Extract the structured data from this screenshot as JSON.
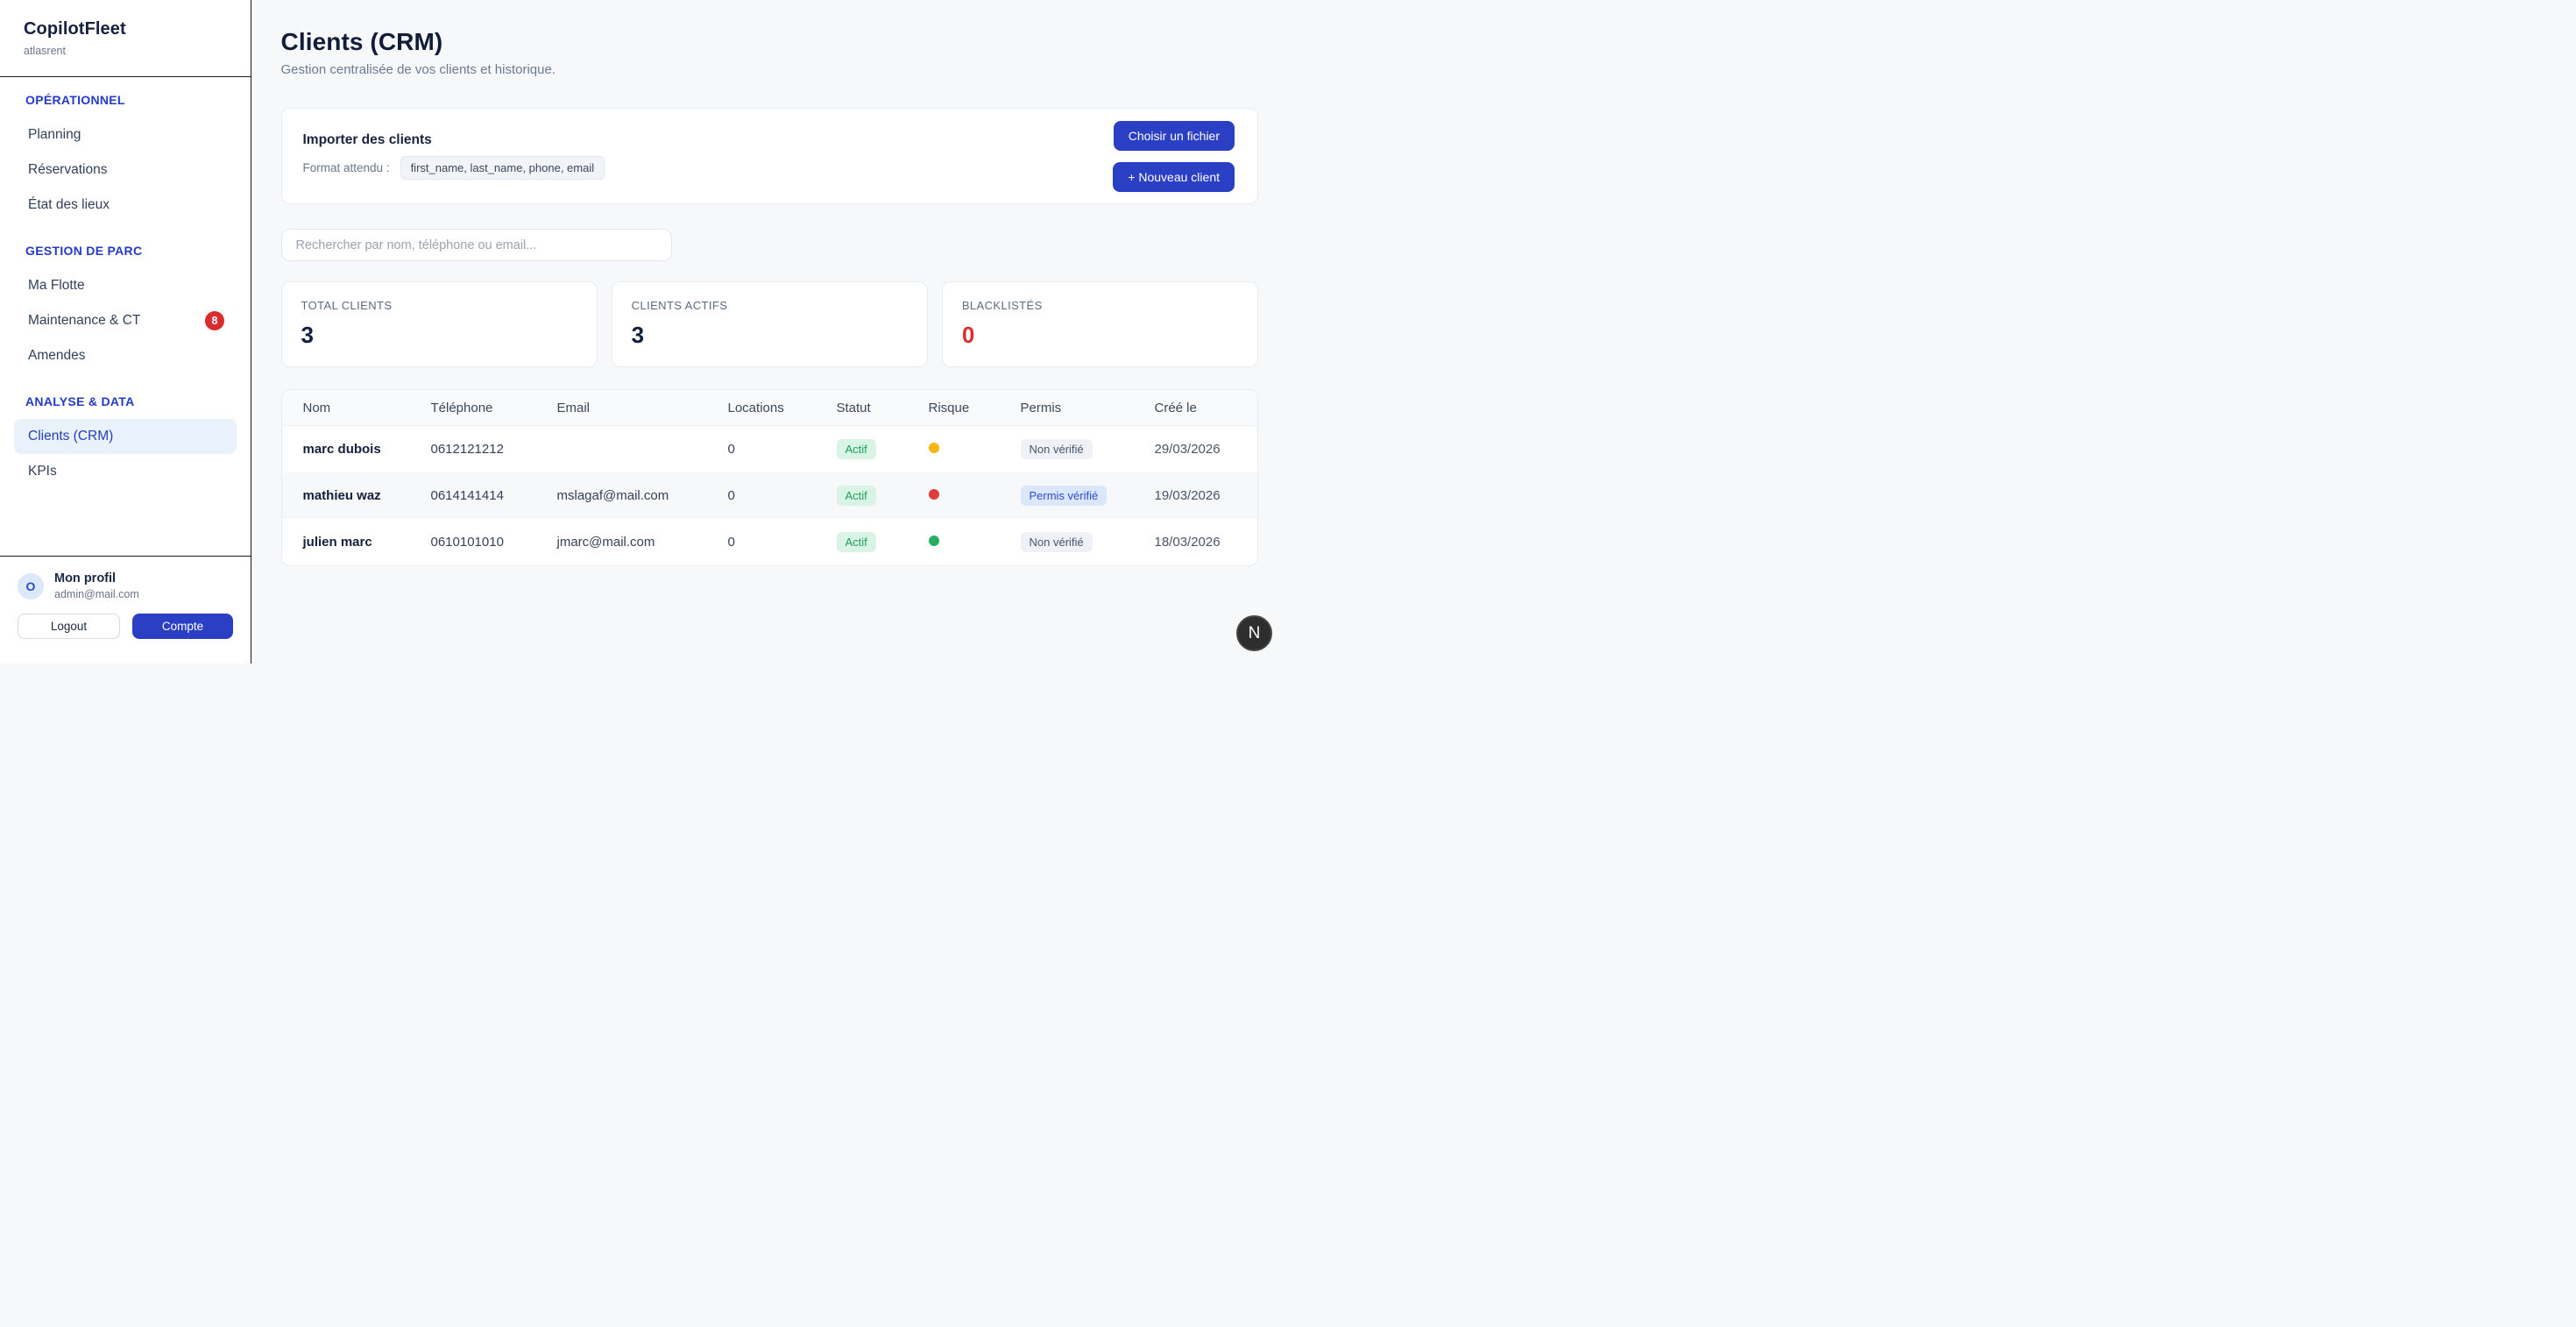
{
  "app": {
    "name": "CopilotFleet",
    "org": "atlasrent"
  },
  "sidebar": {
    "sections": [
      {
        "title": "OPÉRATIONNEL",
        "items": [
          {
            "label": "Planning"
          },
          {
            "label": "Réservations"
          },
          {
            "label": "État des lieux"
          }
        ]
      },
      {
        "title": "GESTION DE PARC",
        "items": [
          {
            "label": "Ma Flotte"
          },
          {
            "label": "Maintenance & CT",
            "badge": "8"
          },
          {
            "label": "Amendes"
          }
        ]
      },
      {
        "title": "ANALYSE & DATA",
        "items": [
          {
            "label": "Clients (CRM)",
            "active": true
          },
          {
            "label": "KPIs"
          }
        ]
      }
    ],
    "profile": {
      "avatar_initial": "O",
      "name": "Mon profil",
      "email": "admin@mail.com",
      "logout_label": "Logout",
      "account_label": "Compte"
    }
  },
  "header": {
    "title": "Clients (CRM)",
    "subtitle": "Gestion centralisée de vos clients et historique."
  },
  "import_card": {
    "title": "Importer des clients",
    "format_label": "Format attendu :",
    "format_value": "first_name, last_name, phone, email",
    "choose_file_label": "Choisir un fichier",
    "new_client_label": "+ Nouveau client"
  },
  "search": {
    "placeholder": "Rechercher par nom, téléphone ou email..."
  },
  "stats": [
    {
      "label": "TOTAL CLIENTS",
      "value": "3",
      "variant": "dark"
    },
    {
      "label": "CLIENTS ACTIFS",
      "value": "3",
      "variant": "dark"
    },
    {
      "label": "BLACKLISTÉS",
      "value": "0",
      "variant": "red"
    }
  ],
  "table": {
    "columns": [
      "Nom",
      "Téléphone",
      "Email",
      "Locations",
      "Statut",
      "Risque",
      "Permis",
      "Créé le"
    ],
    "rows": [
      {
        "name": "marc dubois",
        "phone": "0612121212",
        "email": "",
        "locations": "0",
        "status": "Actif",
        "risk": "amber",
        "permis": "Non vérifié",
        "permis_variant": "unverified",
        "created": "29/03/2026"
      },
      {
        "name": "mathieu waz",
        "phone": "0614141414",
        "email": "mslagaf@mail.com",
        "locations": "0",
        "status": "Actif",
        "risk": "red",
        "permis": "Permis vérifié",
        "permis_variant": "verified",
        "created": "19/03/2026"
      },
      {
        "name": "julien marc",
        "phone": "0610101010",
        "email": "jmarc@mail.com",
        "locations": "0",
        "status": "Actif",
        "risk": "green",
        "permis": "Non vérifié",
        "permis_variant": "unverified",
        "created": "18/03/2026"
      }
    ]
  },
  "fab": {
    "label": "N"
  },
  "colors": {
    "primary_blue": "#2b3fc4",
    "active_item_bg": "#e9f1fb",
    "badge_red": "#d92c2c",
    "status_green": "#1d9e5f",
    "risk_amber": "#f5b513",
    "risk_red": "#e23b3b",
    "risk_green": "#27ae60",
    "blacklisted_red": "#d93030"
  }
}
